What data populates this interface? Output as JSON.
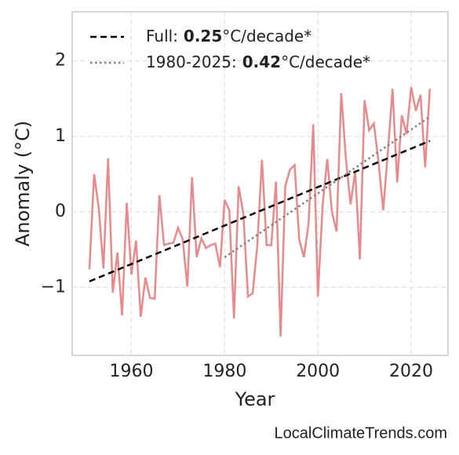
{
  "chart_data": {
    "type": "line",
    "xlabel": "Year",
    "ylabel": "Anomaly (°C)",
    "source": "LocalClimateTrends.com",
    "xlim": [
      1947.3,
      2027.9
    ],
    "ylim": [
      -1.9,
      2.65
    ],
    "xticks": [
      1960,
      1980,
      2000,
      2020
    ],
    "yticks": [
      {
        "value": -1,
        "label": "−1"
      },
      0,
      1,
      2
    ],
    "grid": true,
    "legend": "upper left",
    "series": [
      {
        "color": "#e8898b",
        "style": "solid",
        "x": [
          1951,
          1952,
          1953,
          1954,
          1955,
          1956,
          1957,
          1958,
          1959,
          1960,
          1961,
          1962,
          1963,
          1964,
          1965,
          1966,
          1967,
          1968,
          1969,
          1970,
          1971,
          1972,
          1973,
          1974,
          1975,
          1976,
          1977,
          1978,
          1979,
          1980,
          1981,
          1982,
          1983,
          1984,
          1985,
          1986,
          1987,
          1988,
          1989,
          1990,
          1991,
          1992,
          1993,
          1994,
          1995,
          1996,
          1997,
          1998,
          1999,
          2000,
          2001,
          2002,
          2003,
          2004,
          2005,
          2006,
          2007,
          2008,
          2009,
          2010,
          2011,
          2012,
          2013,
          2014,
          2015,
          2016,
          2017,
          2018,
          2019,
          2020,
          2021,
          2022,
          2023,
          2024
        ],
        "values": [
          -0.76,
          0.5,
          0.05,
          -0.75,
          0.71,
          -1.07,
          -0.54,
          -1.37,
          0.12,
          -0.83,
          -0.38,
          -1.39,
          -0.87,
          -1.14,
          -1.15,
          0.22,
          -0.44,
          -0.42,
          -0.41,
          -0.21,
          -0.36,
          -0.99,
          0.46,
          -0.6,
          -0.35,
          -0.48,
          -0.44,
          -0.42,
          -0.73,
          0.16,
          0.02,
          -1.41,
          0.34,
          -0.02,
          -1.12,
          -1.08,
          -0.44,
          0.69,
          -0.44,
          -0.44,
          0.4,
          -1.65,
          0.34,
          0.56,
          0.62,
          -0.37,
          -0.6,
          -0.15,
          1.16,
          -1.12,
          0.08,
          0.7,
          0.0,
          -0.26,
          1.57,
          0.71,
          0.1,
          0.54,
          -0.63,
          1.48,
          1.08,
          1.17,
          0.66,
          0.02,
          0.79,
          1.63,
          0.39,
          1.28,
          1.03,
          1.65,
          1.34,
          1.55,
          0.59,
          1.63
        ]
      },
      {
        "name": "Full:",
        "slope": 0.25,
        "slope_unit": "°C/decade*",
        "color": "#000000",
        "style": "dashed",
        "x": [
          1951,
          2024
        ],
        "values": [
          -0.92,
          0.94
        ]
      },
      {
        "name": "1980-2025:",
        "slope": 0.42,
        "slope_unit": "°C/decade*",
        "color": "#808080",
        "style": "dotted",
        "x": [
          1980,
          2024
        ],
        "values": [
          -0.6,
          1.26
        ]
      }
    ]
  }
}
